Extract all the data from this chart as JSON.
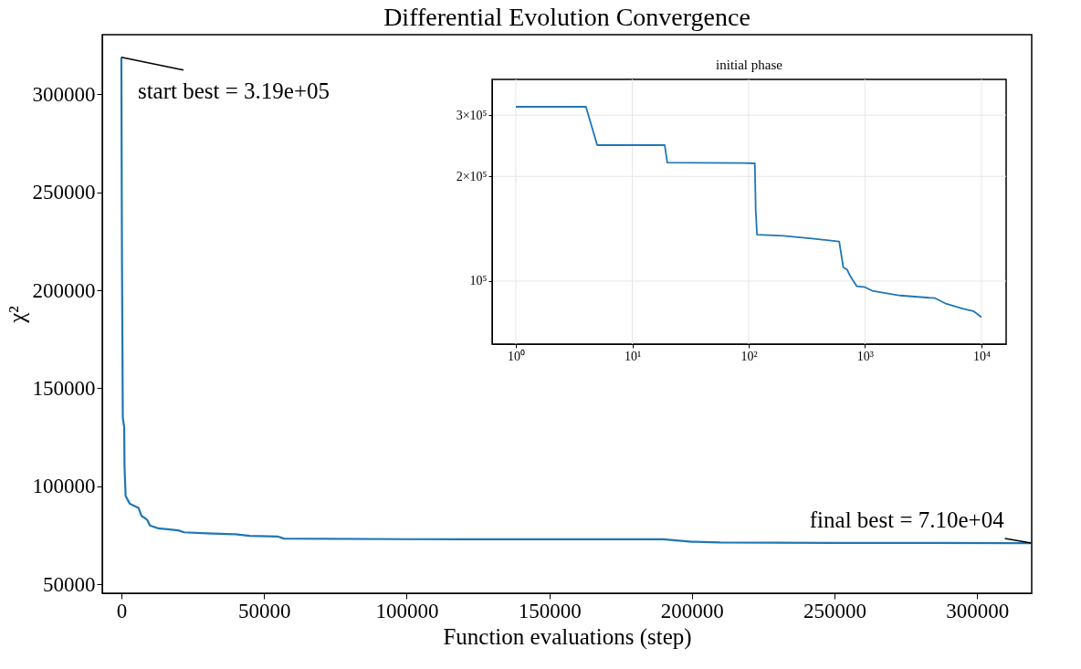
{
  "chart_data": [
    {
      "type": "line",
      "title": "Differential Evolution Convergence",
      "xlabel": "Function evaluations (step)",
      "ylabel": "χ²",
      "xlim": [
        -6700,
        319100
      ],
      "ylim": [
        45400,
        330500
      ],
      "xticks": [
        0,
        50000,
        100000,
        150000,
        200000,
        250000,
        300000
      ],
      "yticks": [
        50000,
        100000,
        150000,
        200000,
        250000,
        300000
      ],
      "grid": false,
      "series": [
        {
          "color": "#1f77b4",
          "x": [
            0,
            200,
            500,
            1000,
            1100,
            1500,
            3000,
            6000,
            7000,
            9000,
            10000,
            13000,
            20000,
            22000,
            30000,
            40000,
            45000,
            55000,
            57000,
            100000,
            190000,
            200000,
            210000,
            250000,
            319000
          ],
          "values": [
            319000,
            220000,
            135000,
            130000,
            110000,
            95000,
            91000,
            89000,
            85000,
            83000,
            80000,
            78500,
            77500,
            76500,
            76000,
            75500,
            74700,
            74300,
            73300,
            73000,
            72900,
            71700,
            71300,
            71100,
            71000
          ]
        }
      ],
      "annotations": [
        {
          "text": "start best = 3.19e+05",
          "x": 0,
          "y": 319000
        },
        {
          "text": "final best = 7.10e+04",
          "x": 319000,
          "y": 71000
        }
      ]
    },
    {
      "type": "line",
      "title": "initial phase",
      "log": "xy",
      "grid": true,
      "xlim": [
        0.625,
        16300
      ],
      "ylim": [
        65900,
        380000
      ],
      "xticks": [
        {
          "value": 1,
          "label": "10⁰"
        },
        {
          "value": 10,
          "label": "10¹"
        },
        {
          "value": 100,
          "label": "10²"
        },
        {
          "value": 1000,
          "label": "10³"
        },
        {
          "value": 10000,
          "label": "10⁴"
        }
      ],
      "yticks": [
        {
          "value": 100000,
          "label": "10⁵"
        },
        {
          "value": 200000,
          "label": "2×10⁵"
        },
        {
          "value": 300000,
          "label": "3×10⁵"
        }
      ],
      "series": [
        {
          "color": "#1f77b4",
          "x": [
            1,
            4,
            5,
            19,
            20,
            90,
            113,
            115,
            118,
            200,
            350,
            600,
            650,
            700,
            750,
            850,
            1000,
            1150,
            2000,
            4000,
            5000,
            7000,
            8500,
            10000
          ],
          "values": [
            317000,
            317000,
            246000,
            246000,
            219000,
            218500,
            218000,
            160000,
            136000,
            135000,
            132500,
            130000,
            109500,
            108000,
            103000,
            96600,
            96000,
            93800,
            90900,
            89300,
            86000,
            83200,
            82000,
            78800
          ]
        }
      ]
    }
  ]
}
